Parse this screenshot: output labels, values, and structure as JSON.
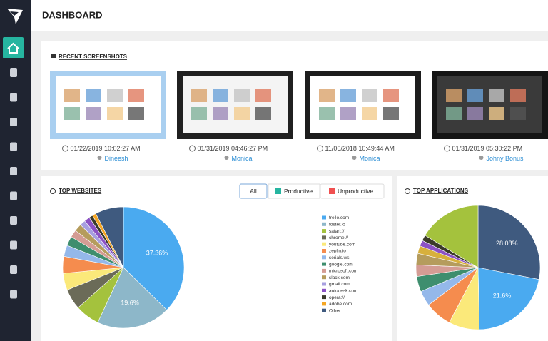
{
  "header": {
    "title": "DASHBOARD"
  },
  "screenshots": {
    "title": "RECENT SCREENSHOTS",
    "items": [
      {
        "time": "01/22/2019 10:02:27 AM",
        "user": "Dineesh"
      },
      {
        "time": "01/31/2019 04:46:27 PM",
        "user": "Monica"
      },
      {
        "time": "11/06/2018 10:49:44 AM",
        "user": "Monica"
      },
      {
        "time": "01/31/2019 05:30:22 PM",
        "user": "Johny Bonus"
      }
    ]
  },
  "filters": [
    "All",
    "Productive",
    "Unproductive"
  ],
  "chart_data": [
    {
      "type": "pie",
      "title": "TOP WEBSITES",
      "categories": [
        "trello.com",
        "foster.io",
        "safari://",
        "chrome://",
        "youtube.com",
        "zeplin.io",
        "serials.ws",
        "google.com",
        "microsoft.com",
        "slack.com",
        "gmail.com",
        "autodesk.com",
        "opera://",
        "adobe.com",
        "Other"
      ],
      "values": [
        37.36,
        19.6,
        6.5,
        5.5,
        4.5,
        4.5,
        3,
        2.5,
        2,
        2,
        1.5,
        1.5,
        1,
        1,
        7.54
      ],
      "value_labels": [
        "37.36%",
        "19.6%",
        null,
        null,
        null,
        null,
        null,
        null,
        null,
        null,
        null,
        null,
        null,
        null,
        null
      ],
      "colors": [
        "#4aaaf0",
        "#8db7c9",
        "#a4c23d",
        "#6b6b58",
        "#fbe97a",
        "#f58c4e",
        "#94b8ea",
        "#3e8e6e",
        "#d49c94",
        "#b59c5d",
        "#a79fe0",
        "#8c52c4",
        "#3a3a2a",
        "#f5a623",
        "#3f5a7f"
      ],
      "legend": "right"
    },
    {
      "type": "pie",
      "title": "TOP APPLICATIONS",
      "categories": [
        null,
        null,
        null,
        null,
        null,
        null,
        null,
        null,
        null,
        null,
        null,
        null
      ],
      "values": [
        28.08,
        21.6,
        8,
        7,
        4,
        4,
        3,
        3,
        2,
        1.5,
        1.5,
        16.32
      ],
      "value_labels": [
        "28.08%",
        "21.6%",
        null,
        null,
        null,
        null,
        null,
        null,
        null,
        null,
        null,
        null
      ],
      "colors": [
        "#3f5a7f",
        "#4aaaf0",
        "#fbe97a",
        "#f58c4e",
        "#94b8ea",
        "#3e8e6e",
        "#d49c94",
        "#b59c5d",
        "#d7b03c",
        "#8c52c4",
        "#3a3a2a",
        "#a4c23d"
      ]
    }
  ]
}
